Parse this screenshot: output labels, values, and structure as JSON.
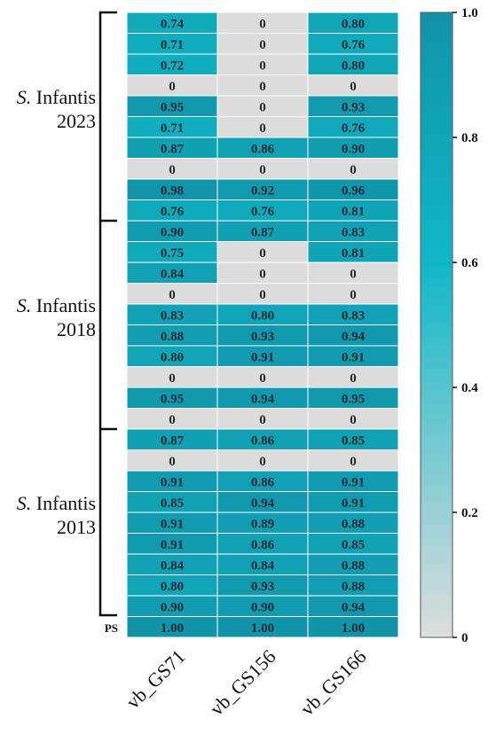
{
  "chart_data": {
    "type": "heatmap",
    "columns": [
      "vb_GS71",
      "vb_GS156",
      "vb_GS166"
    ],
    "rows": [
      [
        0.74,
        0,
        0.8
      ],
      [
        0.71,
        0,
        0.76
      ],
      [
        0.72,
        0,
        0.8
      ],
      [
        0,
        0,
        0
      ],
      [
        0.95,
        0,
        0.93
      ],
      [
        0.71,
        0,
        0.76
      ],
      [
        0.87,
        0.86,
        0.9
      ],
      [
        0,
        0,
        0
      ],
      [
        0.98,
        0.92,
        0.96
      ],
      [
        0.76,
        0.76,
        0.81
      ],
      [
        0.9,
        0.87,
        0.83
      ],
      [
        0.75,
        0,
        0.81
      ],
      [
        0.84,
        0,
        0
      ],
      [
        0,
        0,
        0
      ],
      [
        0.83,
        0.8,
        0.83
      ],
      [
        0.88,
        0.93,
        0.94
      ],
      [
        0.8,
        0.91,
        0.91
      ],
      [
        0,
        0,
        0
      ],
      [
        0.95,
        0.94,
        0.95
      ],
      [
        0,
        0,
        0
      ],
      [
        0.87,
        0.86,
        0.85
      ],
      [
        0,
        0,
        0
      ],
      [
        0.91,
        0.86,
        0.91
      ],
      [
        0.85,
        0.94,
        0.91
      ],
      [
        0.91,
        0.89,
        0.88
      ],
      [
        0.91,
        0.86,
        0.85
      ],
      [
        0.84,
        0.84,
        0.88
      ],
      [
        0.8,
        0.93,
        0.88
      ],
      [
        0.9,
        0.9,
        0.94
      ],
      [
        1.0,
        1.0,
        1.0
      ]
    ],
    "cell_labels": [
      [
        "0.74",
        "0",
        "0.80"
      ],
      [
        "0.71",
        "0",
        "0.76"
      ],
      [
        "0.72",
        "0",
        "0.80"
      ],
      [
        "0",
        "0",
        "0"
      ],
      [
        "0.95",
        "0",
        "0.93"
      ],
      [
        "0.71",
        "0",
        "0.76"
      ],
      [
        "0.87",
        "0.86",
        "0.90"
      ],
      [
        "0",
        "0",
        "0"
      ],
      [
        "0.98",
        "0.92",
        "0.96"
      ],
      [
        "0.76",
        "0.76",
        "0.81"
      ],
      [
        "0.90",
        "0.87",
        "0.83"
      ],
      [
        "0.75",
        "0",
        "0.81"
      ],
      [
        "0.84",
        "0",
        "0"
      ],
      [
        "0",
        "0",
        "0"
      ],
      [
        "0.83",
        "0.80",
        "0.83"
      ],
      [
        "0.88",
        "0.93",
        "0.94"
      ],
      [
        "0.80",
        "0.91",
        "0.91"
      ],
      [
        "0",
        "0",
        "0"
      ],
      [
        "0.95",
        "0.94",
        "0.95"
      ],
      [
        "0",
        "0",
        "0"
      ],
      [
        "0.87",
        "0.86",
        "0.85"
      ],
      [
        "0",
        "0",
        "0"
      ],
      [
        "0.91",
        "0.86",
        "0.91"
      ],
      [
        "0.85",
        "0.94",
        "0.91"
      ],
      [
        "0.91",
        "0.89",
        "0.88"
      ],
      [
        "0.91",
        "0.86",
        "0.85"
      ],
      [
        "0.84",
        "0.84",
        "0.88"
      ],
      [
        "0.80",
        "0.93",
        "0.88"
      ],
      [
        "0.90",
        "0.90",
        "0.94"
      ],
      [
        "1.00",
        "1.00",
        "1.00"
      ]
    ],
    "row_groups": [
      {
        "italic": "S.",
        "name": "Infantis",
        "year": "2023",
        "start_row": 0,
        "end_row": 9
      },
      {
        "italic": "S.",
        "name": "Infantis",
        "year": "2018",
        "start_row": 10,
        "end_row": 19
      },
      {
        "italic": "S.",
        "name": "Infantis",
        "year": "2013",
        "start_row": 20,
        "end_row": 28
      }
    ],
    "ps_label": "PS",
    "colorbar": {
      "range": [
        0,
        1.0
      ],
      "ticks": [
        0,
        0.2,
        0.4,
        0.6,
        0.8,
        1.0
      ],
      "tick_labels": [
        "0",
        "0.2",
        "0.4",
        "0.6",
        "0.8",
        "1.0"
      ],
      "colors": {
        "0": "#dddddd",
        "0.6": "#10b7c8",
        "1.0": "#1193a9"
      }
    },
    "zero_color": "#dcdcdc",
    "text_color": "#1f2a30"
  }
}
